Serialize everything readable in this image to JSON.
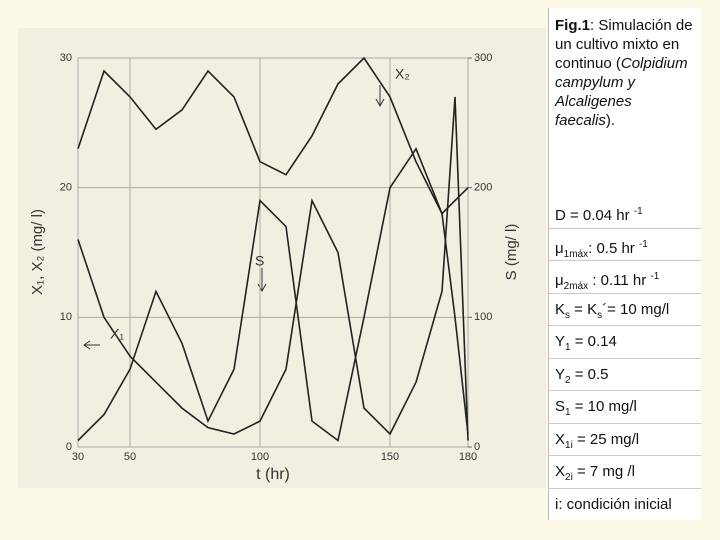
{
  "chart_data": {
    "type": "line",
    "x_label": "t (hr)",
    "y_label": "X₁, X₂ (mg/ l)",
    "y2_label": "S (mg/ l)",
    "x": [
      30,
      40,
      50,
      60,
      70,
      80,
      90,
      100,
      110,
      120,
      130,
      140,
      150,
      160,
      170,
      175,
      180
    ],
    "series": [
      {
        "name": "X₂",
        "color": "#222222",
        "values": [
          23,
          29,
          27,
          24.5,
          26,
          29,
          27,
          22,
          21,
          24,
          28,
          30,
          27,
          22,
          18,
          19,
          20
        ]
      },
      {
        "name": "S",
        "color": "#222222",
        "axis": "y2",
        "values": [
          5,
          25,
          60,
          120,
          80,
          20,
          60,
          190,
          170,
          20,
          5,
          100,
          200,
          230,
          180,
          100,
          10
        ]
      },
      {
        "name": "X₁",
        "color": "#222222",
        "values": [
          16,
          10,
          7,
          5,
          3,
          1.5,
          1,
          2,
          6,
          19,
          15,
          3,
          1,
          5,
          12,
          27,
          0.5
        ]
      }
    ],
    "xlim": [
      30,
      180
    ],
    "xticks": [
      30,
      50,
      100,
      150,
      180
    ],
    "ylim": [
      0,
      30
    ],
    "yticks": [
      0,
      10,
      20,
      30
    ],
    "y2lim": [
      0,
      300
    ],
    "y2ticks": [
      0,
      100,
      200,
      300
    ],
    "grid": true
  },
  "panel": {
    "caption": {
      "label": "Fig.1",
      "text": ": Simulación de un cultivo mixto en continuo (",
      "species": "Colpidium campylum y Alcaligenes faecalis",
      "end": ")."
    },
    "params": [
      [
        {
          "text": "D = 0.04 hr "
        },
        {
          "text": "-1",
          "pos": "sup"
        }
      ],
      [
        {
          "text": "μ"
        },
        {
          "text": "1máx",
          "pos": "sub"
        },
        {
          "text": ": 0.5 hr "
        },
        {
          "text": "-1",
          "pos": "sup"
        }
      ],
      [
        {
          "text": "μ"
        },
        {
          "text": "2máx",
          "pos": "sub"
        },
        {
          "text": " : 0.11 hr "
        },
        {
          "text": "-1",
          "pos": "sup"
        }
      ],
      [
        {
          "text": "K"
        },
        {
          "text": "s",
          "pos": "sub"
        },
        {
          "text": " = K"
        },
        {
          "text": "s",
          "pos": "sub"
        },
        {
          "text": "´= 10 mg/l"
        }
      ],
      [
        {
          "text": "Y"
        },
        {
          "text": "1",
          "pos": "sub"
        },
        {
          "text": " = 0.14"
        }
      ],
      [
        {
          "text": "Y"
        },
        {
          "text": "2",
          "pos": "sub"
        },
        {
          "text": " = 0.5"
        }
      ],
      [
        {
          "text": "S"
        },
        {
          "text": "1",
          "pos": "sub"
        },
        {
          "text": " = 10 mg/l"
        }
      ],
      [
        {
          "text": "X"
        },
        {
          "text": "1i",
          "pos": "sub"
        },
        {
          "text": " = 25 mg/l"
        }
      ],
      [
        {
          "text": "X"
        },
        {
          "text": "2i",
          "pos": "sub"
        },
        {
          "text": " = 7 mg /l"
        }
      ],
      [
        {
          "text": "i: condición inicial"
        }
      ]
    ]
  }
}
